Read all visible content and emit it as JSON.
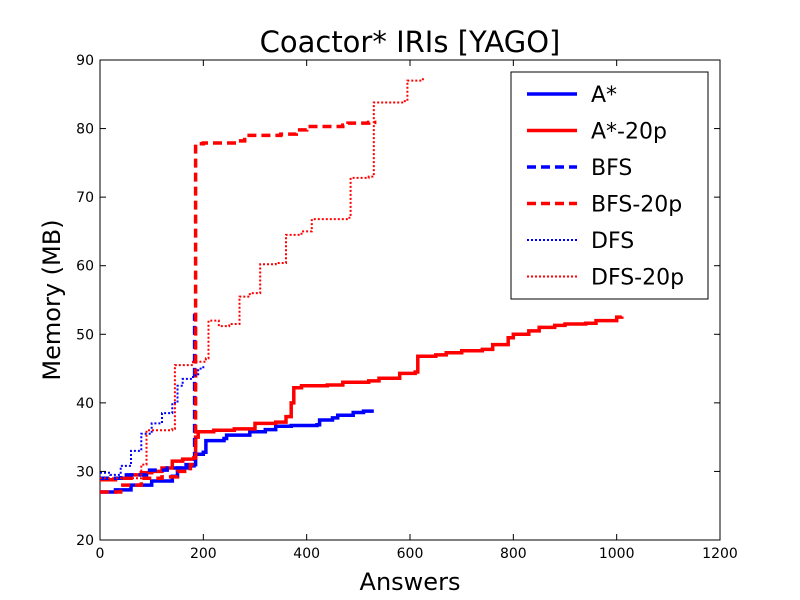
{
  "chart_data": {
    "type": "line",
    "title": "Coactor* IRIs [YAGO]",
    "xlabel": "Answers",
    "ylabel": "Memory (MB)",
    "xlim": [
      0,
      1200
    ],
    "ylim": [
      20,
      90
    ],
    "xticks": [
      0,
      200,
      400,
      600,
      800,
      1000,
      1200
    ],
    "yticks": [
      20,
      30,
      40,
      50,
      60,
      70,
      80,
      90
    ],
    "grid": false,
    "legend_position": "top-right",
    "series": [
      {
        "name": "A*",
        "color": "#0000ff",
        "style": "solid",
        "width": 3.5,
        "points": [
          [
            0,
            27
          ],
          [
            30,
            27.3
          ],
          [
            60,
            28
          ],
          [
            100,
            28.6
          ],
          [
            140,
            29.3
          ],
          [
            150,
            30.5
          ],
          [
            170,
            30.8
          ],
          [
            182,
            31
          ],
          [
            185,
            32.5
          ],
          [
            200,
            32.8
          ],
          [
            205,
            34.5
          ],
          [
            240,
            34.8
          ],
          [
            245,
            35.3
          ],
          [
            290,
            35.8
          ],
          [
            320,
            36.1
          ],
          [
            340,
            36.6
          ],
          [
            370,
            36.7
          ],
          [
            420,
            36.8
          ],
          [
            425,
            37.5
          ],
          [
            450,
            37.8
          ],
          [
            460,
            38.2
          ],
          [
            490,
            38.6
          ],
          [
            510,
            38.8
          ],
          [
            530,
            38.8
          ]
        ]
      },
      {
        "name": "A*-20p",
        "color": "#ff0000",
        "style": "solid",
        "width": 3.5,
        "points": [
          [
            0,
            28.8
          ],
          [
            30,
            29
          ],
          [
            60,
            29.5
          ],
          [
            80,
            29.8
          ],
          [
            100,
            30
          ],
          [
            120,
            30.5
          ],
          [
            140,
            31.5
          ],
          [
            160,
            31.8
          ],
          [
            182,
            32
          ],
          [
            185,
            35
          ],
          [
            190,
            35.8
          ],
          [
            220,
            36
          ],
          [
            260,
            36.2
          ],
          [
            300,
            37
          ],
          [
            340,
            37.2
          ],
          [
            360,
            38
          ],
          [
            370,
            40
          ],
          [
            375,
            42.2
          ],
          [
            390,
            42.5
          ],
          [
            440,
            42.6
          ],
          [
            470,
            43
          ],
          [
            520,
            43.2
          ],
          [
            540,
            43.6
          ],
          [
            580,
            44.3
          ],
          [
            610,
            44.5
          ],
          [
            615,
            46.8
          ],
          [
            650,
            47
          ],
          [
            670,
            47.3
          ],
          [
            700,
            47.6
          ],
          [
            740,
            47.8
          ],
          [
            760,
            48.5
          ],
          [
            790,
            49.5
          ],
          [
            800,
            50
          ],
          [
            830,
            50.5
          ],
          [
            850,
            51
          ],
          [
            880,
            51.3
          ],
          [
            900,
            51.5
          ],
          [
            940,
            51.6
          ],
          [
            960,
            52
          ],
          [
            1000,
            52.5
          ],
          [
            1010,
            52.6
          ]
        ]
      },
      {
        "name": "BFS",
        "color": "#0000ff",
        "style": "dashed",
        "width": 3.5,
        "points": [
          [
            0,
            29
          ],
          [
            40,
            29.5
          ],
          [
            90,
            30.2
          ],
          [
            130,
            30.5
          ],
          [
            160,
            31
          ],
          [
            180,
            31.2
          ],
          [
            183,
            53
          ]
        ]
      },
      {
        "name": "BFS-20p",
        "color": "#ff0000",
        "style": "dashed",
        "width": 3.5,
        "points": [
          [
            0,
            27
          ],
          [
            40,
            28
          ],
          [
            80,
            29
          ],
          [
            120,
            29.2
          ],
          [
            150,
            30
          ],
          [
            175,
            31
          ],
          [
            182,
            32
          ],
          [
            185,
            77.8
          ],
          [
            200,
            77.9
          ],
          [
            260,
            78.2
          ],
          [
            280,
            79
          ],
          [
            350,
            79.2
          ],
          [
            380,
            79.8
          ],
          [
            400,
            80.3
          ],
          [
            470,
            80.5
          ],
          [
            480,
            80.8
          ],
          [
            520,
            80.9
          ],
          [
            535,
            80.9
          ]
        ]
      },
      {
        "name": "DFS",
        "color": "#0000ff",
        "style": "dotted",
        "width": 2,
        "points": [
          [
            0,
            29.8
          ],
          [
            20,
            29.5
          ],
          [
            40,
            30.8
          ],
          [
            60,
            33
          ],
          [
            80,
            35.5
          ],
          [
            100,
            37
          ],
          [
            120,
            38.5
          ],
          [
            140,
            40
          ],
          [
            150,
            42.5
          ],
          [
            160,
            43.5
          ],
          [
            180,
            44
          ],
          [
            190,
            45
          ],
          [
            200,
            45.5
          ]
        ]
      },
      {
        "name": "DFS-20p",
        "color": "#ff0000",
        "style": "dotted",
        "width": 2,
        "points": [
          [
            0,
            29
          ],
          [
            40,
            29
          ],
          [
            80,
            31
          ],
          [
            90,
            36
          ],
          [
            140,
            36.2
          ],
          [
            145,
            45.5
          ],
          [
            180,
            46
          ],
          [
            205,
            46.5
          ],
          [
            210,
            52
          ],
          [
            230,
            51.2
          ],
          [
            250,
            51.5
          ],
          [
            270,
            55.5
          ],
          [
            290,
            56
          ],
          [
            310,
            60.2
          ],
          [
            340,
            60.4
          ],
          [
            360,
            64.5
          ],
          [
            390,
            65
          ],
          [
            410,
            66.8
          ],
          [
            480,
            67
          ],
          [
            485,
            72.8
          ],
          [
            520,
            73
          ],
          [
            530,
            83.8
          ],
          [
            590,
            84
          ],
          [
            595,
            87
          ],
          [
            620,
            87.2
          ],
          [
            630,
            87.2
          ]
        ]
      }
    ]
  }
}
